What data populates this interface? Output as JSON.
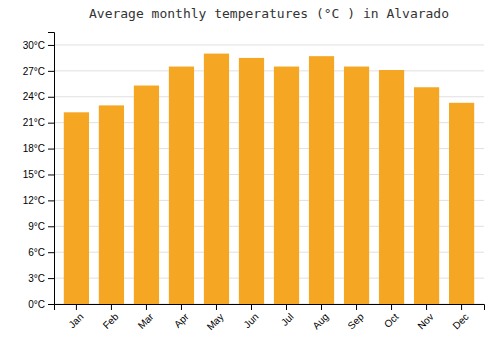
{
  "chart_data": {
    "type": "bar",
    "title": "Average monthly temperatures (°C ) in Alvarado",
    "categories": [
      "Jan",
      "Feb",
      "Mar",
      "Apr",
      "May",
      "Jun",
      "Jul",
      "Aug",
      "Sep",
      "Oct",
      "Nov",
      "Dec"
    ],
    "values": [
      22.2,
      23.0,
      25.3,
      27.5,
      29.0,
      28.5,
      27.5,
      28.7,
      27.5,
      27.1,
      25.1,
      23.3
    ],
    "color": "#F5A623",
    "ylim": [
      0,
      31.5
    ],
    "yticks": [
      {
        "value": 0,
        "label": "0°C"
      },
      {
        "value": 3,
        "label": "3°C"
      },
      {
        "value": 6,
        "label": "6°C"
      },
      {
        "value": 9,
        "label": "9°C"
      },
      {
        "value": 12,
        "label": "12°C"
      },
      {
        "value": 15,
        "label": "15°C"
      },
      {
        "value": 18,
        "label": "18°C"
      },
      {
        "value": 21,
        "label": "21°C"
      },
      {
        "value": 24,
        "label": "24°C"
      },
      {
        "value": 27,
        "label": "27°C"
      },
      {
        "value": 30,
        "label": "30°C"
      }
    ],
    "grid": true
  }
}
